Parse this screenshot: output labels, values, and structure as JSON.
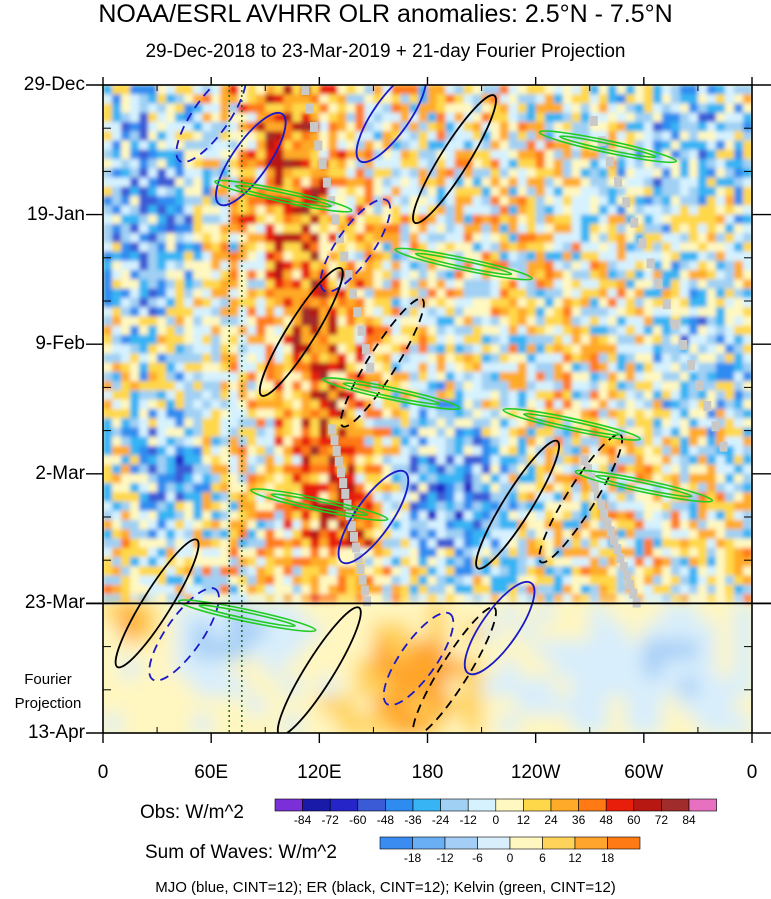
{
  "chart_data": {
    "type": "heatmap",
    "title": "NOAA/ESRL AVHRR OLR anomalies: 2.5°N - 7.5°N",
    "subtitle": "29-Dec-2018 to 23-Mar-2019 + 21-day Fourier Projection",
    "xlabel": "",
    "ylabel": "",
    "x_axis": {
      "range_deg_east": [
        0,
        360
      ],
      "ticks": [
        {
          "deg": 0,
          "label": "0"
        },
        {
          "deg": 60,
          "label": "60E"
        },
        {
          "deg": 120,
          "label": "120E"
        },
        {
          "deg": 180,
          "label": "180"
        },
        {
          "deg": 240,
          "label": "120W"
        },
        {
          "deg": 300,
          "label": "60W"
        },
        {
          "deg": 360,
          "label": "0"
        }
      ]
    },
    "y_axis": {
      "range_days": [
        0,
        105
      ],
      "direction": "time increases downward",
      "ticks": [
        {
          "day": 0,
          "label": "29-Dec"
        },
        {
          "day": 21,
          "label": "19-Jan"
        },
        {
          "day": 42,
          "label": "9-Feb"
        },
        {
          "day": 63,
          "label": "2-Mar"
        },
        {
          "day": 84,
          "label": "23-Mar"
        },
        {
          "day": 105,
          "label": "13-Apr"
        }
      ]
    },
    "projection_boundary": {
      "day": 84,
      "label": "23-Mar"
    },
    "projection_labels": [
      "Fourier",
      "Projection"
    ],
    "reference_lines_deg": [
      70,
      77
    ],
    "colorbars": [
      {
        "label": "Obs: W/m^2",
        "levels": [
          "-84",
          "-72",
          "-60",
          "-48",
          "-36",
          "-24",
          "-12",
          "0",
          "12",
          "24",
          "36",
          "48",
          "60",
          "72",
          "84"
        ],
        "colors": [
          "#7a2fd8",
          "#1a1aa8",
          "#2424c8",
          "#3a5ad6",
          "#2e8cf0",
          "#36b4f4",
          "#a0d0f4",
          "#d6f2ff",
          "#fff8c0",
          "#ffd84a",
          "#ffaa28",
          "#ff7a14",
          "#e81e0a",
          "#b81812",
          "#a02c2c",
          "#e870c0"
        ]
      },
      {
        "label": "Sum of Waves: W/m^2",
        "levels": [
          "-18",
          "-12",
          "-6",
          "0",
          "6",
          "12",
          "18"
        ],
        "colors": [
          "#3a8cf0",
          "#6aaef4",
          "#a4cef6",
          "#d8eefc",
          "#fff6c0",
          "#ffd25a",
          "#ffa42c",
          "#ff7a14"
        ]
      }
    ],
    "contour_legend": "MJO (blue, CINT=12); ER (black, CINT=12); Kelvin (green, CINT=12)",
    "series": [
      {
        "name": "MJO",
        "color": "#1a1ac8",
        "cint": 12,
        "features": [
          {
            "lon": 60,
            "day": 5,
            "sign": "neg"
          },
          {
            "lon": 82,
            "day": 12,
            "sign": "pos"
          },
          {
            "lon": 140,
            "day": 26,
            "sign": "neg"
          },
          {
            "lon": 160,
            "day": 5,
            "sign": "pos"
          },
          {
            "lon": 150,
            "day": 70,
            "sign": "pos"
          },
          {
            "lon": 175,
            "day": 93,
            "sign": "neg"
          },
          {
            "lon": 45,
            "day": 89,
            "sign": "neg"
          },
          {
            "lon": 220,
            "day": 88,
            "sign": "pos"
          }
        ]
      },
      {
        "name": "ER",
        "color": "#000000",
        "cint": 12,
        "features": [
          {
            "lon": 110,
            "day": 40,
            "sign": "pos"
          },
          {
            "lon": 155,
            "day": 45,
            "sign": "neg"
          },
          {
            "lon": 195,
            "day": 12,
            "sign": "pos"
          },
          {
            "lon": 230,
            "day": 68,
            "sign": "pos"
          },
          {
            "lon": 265,
            "day": 67,
            "sign": "neg"
          },
          {
            "lon": 120,
            "day": 95,
            "sign": "pos"
          },
          {
            "lon": 195,
            "day": 95,
            "sign": "neg"
          },
          {
            "lon": 30,
            "day": 84,
            "sign": "pos"
          }
        ]
      },
      {
        "name": "Kelvin",
        "color": "#22cc22",
        "cint": 12,
        "features": [
          {
            "lon": 100,
            "day": 18,
            "sign": "pos"
          },
          {
            "lon": 200,
            "day": 29,
            "sign": "pos"
          },
          {
            "lon": 160,
            "day": 50,
            "sign": "pos"
          },
          {
            "lon": 260,
            "day": 55,
            "sign": "pos"
          },
          {
            "lon": 120,
            "day": 68,
            "sign": "pos"
          },
          {
            "lon": 300,
            "day": 65,
            "sign": "pos"
          },
          {
            "lon": 280,
            "day": 10,
            "sign": "pos"
          },
          {
            "lon": 80,
            "day": 86,
            "sign": "pos"
          }
        ]
      }
    ]
  }
}
